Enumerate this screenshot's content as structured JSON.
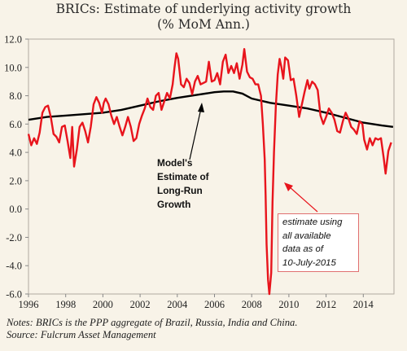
{
  "chart_data": {
    "type": "line",
    "title": "BRICs: Estimate of underlying activity growth",
    "subtitle": "(% MoM Ann.)",
    "xlabel": "",
    "ylabel": "",
    "xlim": [
      1996,
      2015.65
    ],
    "ylim": [
      -6.0,
      12.0
    ],
    "x_ticks": [
      "1996",
      "1998",
      "2000",
      "2002",
      "2004",
      "2006",
      "2008",
      "2010",
      "2012",
      "2014"
    ],
    "y_ticks": [
      "12.0",
      "10.0",
      "8.0",
      "6.0",
      "4.0",
      "2.0",
      "0.0",
      "-2.0",
      "-4.0",
      "-6.0"
    ],
    "grid": false,
    "series": [
      {
        "name": "",
        "color": "#e8141c",
        "points": [
          [
            1996.0,
            5.3
          ],
          [
            1996.15,
            4.5
          ],
          [
            1996.3,
            5.0
          ],
          [
            1996.45,
            4.6
          ],
          [
            1996.6,
            5.4
          ],
          [
            1996.75,
            6.8
          ],
          [
            1996.9,
            7.2
          ],
          [
            1997.05,
            7.3
          ],
          [
            1997.2,
            6.5
          ],
          [
            1997.35,
            5.3
          ],
          [
            1997.5,
            5.1
          ],
          [
            1997.65,
            4.7
          ],
          [
            1997.8,
            5.8
          ],
          [
            1997.95,
            5.9
          ],
          [
            1998.1,
            4.8
          ],
          [
            1998.25,
            3.6
          ],
          [
            1998.35,
            5.8
          ],
          [
            1998.45,
            3.0
          ],
          [
            1998.6,
            4.2
          ],
          [
            1998.75,
            5.8
          ],
          [
            1998.9,
            6.1
          ],
          [
            1999.05,
            5.5
          ],
          [
            1999.2,
            4.7
          ],
          [
            1999.35,
            5.8
          ],
          [
            1999.5,
            7.4
          ],
          [
            1999.65,
            7.9
          ],
          [
            1999.8,
            7.5
          ],
          [
            1999.95,
            6.8
          ],
          [
            2000.05,
            7.5
          ],
          [
            2000.15,
            7.8
          ],
          [
            2000.3,
            7.4
          ],
          [
            2000.45,
            6.6
          ],
          [
            2000.6,
            6.0
          ],
          [
            2000.75,
            6.5
          ],
          [
            2000.9,
            5.8
          ],
          [
            2001.05,
            5.2
          ],
          [
            2001.2,
            5.8
          ],
          [
            2001.35,
            6.5
          ],
          [
            2001.5,
            5.8
          ],
          [
            2001.65,
            4.8
          ],
          [
            2001.8,
            5.0
          ],
          [
            2001.95,
            6.0
          ],
          [
            2002.1,
            6.6
          ],
          [
            2002.25,
            7.1
          ],
          [
            2002.4,
            7.8
          ],
          [
            2002.55,
            7.2
          ],
          [
            2002.7,
            7.0
          ],
          [
            2002.85,
            8.0
          ],
          [
            2003.0,
            8.2
          ],
          [
            2003.15,
            7.0
          ],
          [
            2003.3,
            7.6
          ],
          [
            2003.45,
            8.2
          ],
          [
            2003.6,
            7.8
          ],
          [
            2003.75,
            8.8
          ],
          [
            2003.85,
            10.0
          ],
          [
            2003.95,
            11.0
          ],
          [
            2004.05,
            10.6
          ],
          [
            2004.2,
            8.8
          ],
          [
            2004.35,
            8.6
          ],
          [
            2004.5,
            9.2
          ],
          [
            2004.65,
            8.9
          ],
          [
            2004.8,
            8.1
          ],
          [
            2004.95,
            9.0
          ],
          [
            2005.1,
            9.4
          ],
          [
            2005.25,
            8.8
          ],
          [
            2005.4,
            8.9
          ],
          [
            2005.55,
            9.0
          ],
          [
            2005.7,
            10.4
          ],
          [
            2005.85,
            9.0
          ],
          [
            2006.0,
            9.1
          ],
          [
            2006.15,
            9.6
          ],
          [
            2006.3,
            8.8
          ],
          [
            2006.45,
            10.4
          ],
          [
            2006.6,
            10.9
          ],
          [
            2006.75,
            9.6
          ],
          [
            2006.9,
            10.1
          ],
          [
            2007.05,
            9.6
          ],
          [
            2007.2,
            10.3
          ],
          [
            2007.35,
            9.2
          ],
          [
            2007.5,
            10.2
          ],
          [
            2007.6,
            11.3
          ],
          [
            2007.75,
            9.7
          ],
          [
            2007.9,
            9.3
          ],
          [
            2008.05,
            9.2
          ],
          [
            2008.2,
            8.8
          ],
          [
            2008.35,
            8.8
          ],
          [
            2008.5,
            8.0
          ],
          [
            2008.6,
            6.0
          ],
          [
            2008.7,
            3.5
          ],
          [
            2008.75,
            1.0
          ],
          [
            2008.8,
            -2.5
          ],
          [
            2008.88,
            -5.0
          ],
          [
            2008.95,
            -6.0
          ],
          [
            2009.05,
            -4.5
          ],
          [
            2009.12,
            0.5
          ],
          [
            2009.2,
            4.0
          ],
          [
            2009.3,
            7.3
          ],
          [
            2009.4,
            9.5
          ],
          [
            2009.5,
            10.6
          ],
          [
            2009.6,
            10.0
          ],
          [
            2009.7,
            9.2
          ],
          [
            2009.8,
            10.7
          ],
          [
            2009.95,
            10.5
          ],
          [
            2010.1,
            9.1
          ],
          [
            2010.25,
            9.2
          ],
          [
            2010.4,
            8.0
          ],
          [
            2010.55,
            6.5
          ],
          [
            2010.7,
            7.4
          ],
          [
            2010.85,
            8.3
          ],
          [
            2011.0,
            9.1
          ],
          [
            2011.1,
            8.5
          ],
          [
            2011.25,
            9.0
          ],
          [
            2011.4,
            8.8
          ],
          [
            2011.55,
            8.4
          ],
          [
            2011.7,
            6.6
          ],
          [
            2011.85,
            6.0
          ],
          [
            2012.0,
            6.5
          ],
          [
            2012.15,
            7.1
          ],
          [
            2012.3,
            6.8
          ],
          [
            2012.45,
            6.3
          ],
          [
            2012.6,
            5.5
          ],
          [
            2012.75,
            5.4
          ],
          [
            2012.9,
            6.2
          ],
          [
            2013.05,
            6.8
          ],
          [
            2013.2,
            6.4
          ],
          [
            2013.35,
            5.8
          ],
          [
            2013.5,
            5.6
          ],
          [
            2013.65,
            5.3
          ],
          [
            2013.8,
            6.2
          ],
          [
            2013.95,
            6.0
          ],
          [
            2014.05,
            4.9
          ],
          [
            2014.2,
            4.2
          ],
          [
            2014.35,
            5.0
          ],
          [
            2014.5,
            4.5
          ],
          [
            2014.65,
            5.0
          ],
          [
            2014.8,
            4.9
          ],
          [
            2014.95,
            5.0
          ],
          [
            2015.1,
            3.6
          ],
          [
            2015.2,
            2.5
          ],
          [
            2015.35,
            4.1
          ],
          [
            2015.5,
            4.7
          ]
        ]
      },
      {
        "name": "Model's Estimate of Long-Run Growth",
        "color": "#000000",
        "points": [
          [
            1996.0,
            6.3
          ],
          [
            1997.0,
            6.5
          ],
          [
            1998.0,
            6.6
          ],
          [
            1999.0,
            6.7
          ],
          [
            2000.0,
            6.8
          ],
          [
            2001.0,
            7.0
          ],
          [
            2002.0,
            7.3
          ],
          [
            2003.0,
            7.6
          ],
          [
            2004.0,
            7.85
          ],
          [
            2005.0,
            8.05
          ],
          [
            2006.0,
            8.25
          ],
          [
            2006.5,
            8.3
          ],
          [
            2007.0,
            8.3
          ],
          [
            2007.5,
            8.15
          ],
          [
            2008.0,
            7.8
          ],
          [
            2009.0,
            7.5
          ],
          [
            2010.0,
            7.3
          ],
          [
            2011.0,
            7.1
          ],
          [
            2012.0,
            6.8
          ],
          [
            2013.0,
            6.45
          ],
          [
            2014.0,
            6.1
          ],
          [
            2015.0,
            5.9
          ],
          [
            2015.6,
            5.8
          ]
        ]
      }
    ],
    "annotations": {
      "model_lines": [
        "Model's",
        "Estimate of",
        "Long-Run",
        "Growth"
      ],
      "estimate_lines": [
        "estimate using",
        "all available",
        "data as of",
        "10-July-2015"
      ]
    },
    "notes": {
      "line1": "Notes: BRICs is the PPP aggregate of Brazil, Russia, India and China.",
      "line2": "Source: Fulcrum Asset Management"
    }
  }
}
